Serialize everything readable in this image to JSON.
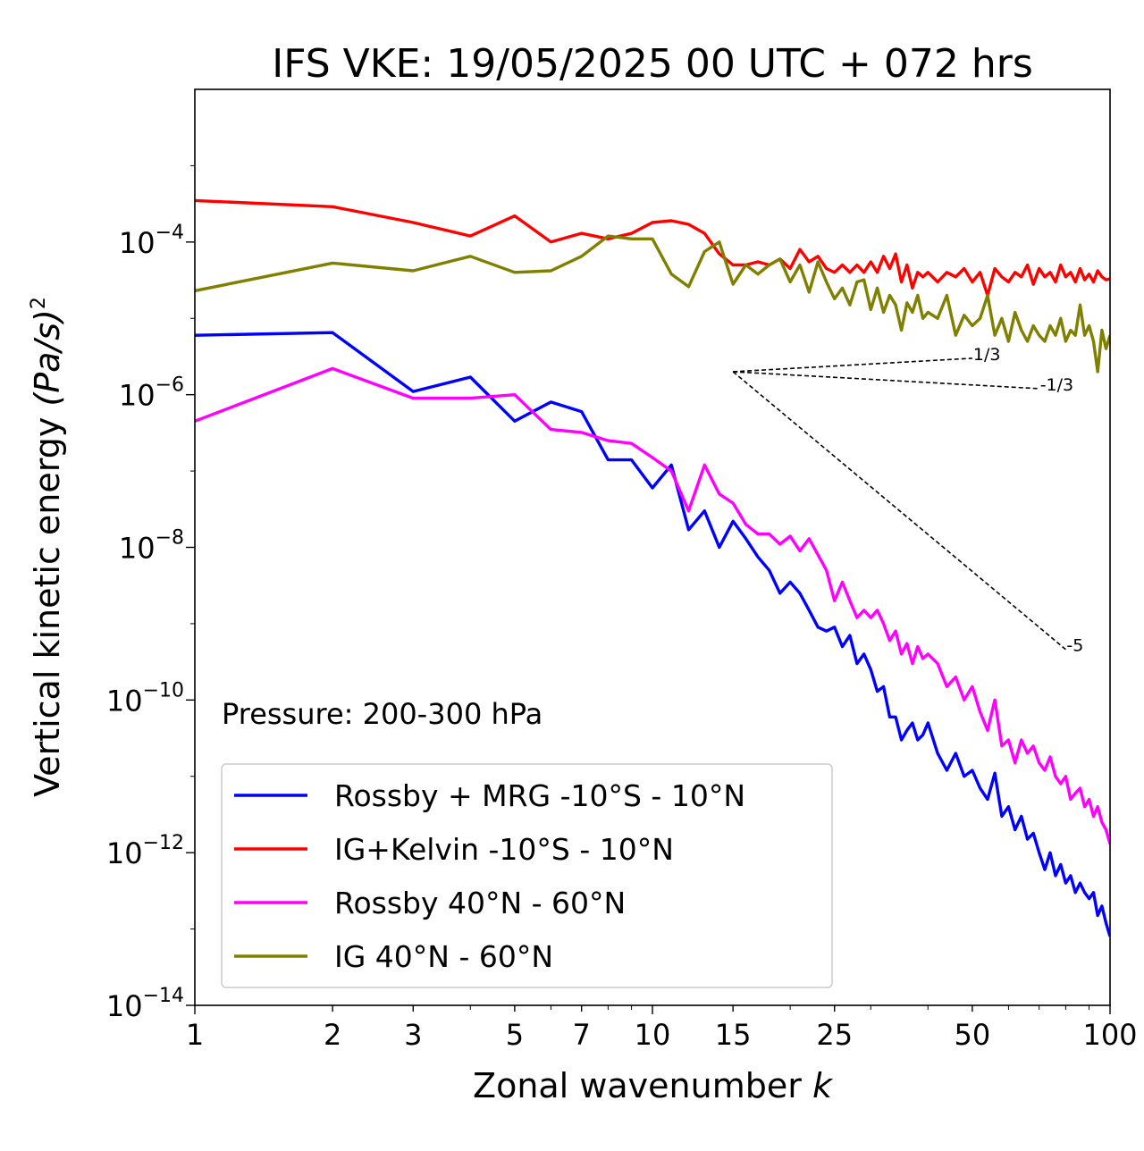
{
  "chart_data": {
    "type": "line",
    "title": "IFS VKE: 19/05/2025 00 UTC + 072 hrs",
    "xlabel": "Zonal wavenumber",
    "xlabel_var": "k",
    "ylabel": "Vertical kinetic energy",
    "ylabel_unit": "(Pa/s)",
    "ylabel_exp": "2",
    "annotation": "Pressure: 200-300 hPa",
    "x_scale": "log",
    "y_scale": "log",
    "xlim": [
      1,
      100
    ],
    "ylim": [
      1e-14,
      0.01
    ],
    "x_ticks": [
      1,
      2,
      3,
      5,
      7,
      10,
      15,
      25,
      50,
      100
    ],
    "x_tick_labels": [
      "1",
      "2",
      "3",
      "5",
      "7",
      "10",
      "15",
      "25",
      "50",
      "100"
    ],
    "y_ticks": [
      {
        "value": 0.0001,
        "base": "10",
        "exp": "−4"
      },
      {
        "value": 1e-06,
        "base": "10",
        "exp": "−6"
      },
      {
        "value": 1e-08,
        "base": "10",
        "exp": "−8"
      },
      {
        "value": 1e-10,
        "base": "10",
        "exp": "−10"
      },
      {
        "value": 1e-12,
        "base": "10",
        "exp": "−12"
      },
      {
        "value": 1e-14,
        "base": "10",
        "exp": "−14"
      }
    ],
    "legend_position": "lower-left",
    "series": [
      {
        "name": "Rossby + MRG -10°S - 10°N",
        "color": "#0000ff",
        "x": [
          1,
          2,
          3,
          4,
          5,
          6,
          7,
          8,
          9,
          10,
          11,
          12,
          13,
          14,
          15,
          16,
          17,
          18,
          19,
          20,
          21,
          22,
          23,
          24,
          25,
          26,
          27,
          28,
          29,
          30,
          31,
          32,
          33,
          34,
          35,
          36,
          37,
          38,
          39,
          40,
          42,
          44,
          46,
          48,
          50,
          52,
          54,
          56,
          58,
          60,
          62,
          64,
          66,
          68,
          70,
          72,
          74,
          76,
          78,
          80,
          82,
          84,
          86,
          88,
          90,
          92,
          94,
          96,
          98,
          100
        ],
        "y": [
          6e-06,
          6.5e-06,
          1.1e-06,
          1.7e-06,
          4.5e-07,
          8e-07,
          6e-07,
          1.4e-07,
          1.4e-07,
          6e-08,
          1.2e-07,
          1.7e-08,
          3e-08,
          1e-08,
          2.2e-08,
          1.3e-08,
          7.5e-09,
          5e-09,
          2.5e-09,
          3.5e-09,
          2.5e-09,
          1.5e-09,
          9e-10,
          8e-10,
          9e-10,
          5e-10,
          7e-10,
          3e-10,
          4e-10,
          2.5e-10,
          1.3e-10,
          1.5e-10,
          6e-11,
          6e-11,
          3e-11,
          4e-11,
          5e-11,
          3e-11,
          3.5e-11,
          5e-11,
          2e-11,
          1.2e-11,
          2e-11,
          1e-11,
          1.2e-11,
          7e-12,
          5e-12,
          1.1e-11,
          3e-12,
          4e-12,
          2e-12,
          3e-12,
          1.5e-12,
          1.8e-12,
          1e-12,
          6e-13,
          1e-12,
          5e-13,
          7e-13,
          4e-13,
          5e-13,
          3e-13,
          4e-13,
          3e-13,
          2.5e-13,
          3e-13,
          1.5e-13,
          2e-13,
          1.2e-13,
          8e-14
        ]
      },
      {
        "name": "IG+Kelvin -10°S - 10°N",
        "color": "#ff0000",
        "x": [
          1,
          2,
          3,
          4,
          5,
          6,
          7,
          8,
          9,
          10,
          11,
          12,
          13,
          14,
          15,
          16,
          17,
          18,
          19,
          20,
          21,
          22,
          23,
          24,
          25,
          26,
          27,
          28,
          29,
          30,
          31,
          32,
          33,
          34,
          35,
          36,
          37,
          38,
          39,
          40,
          42,
          44,
          46,
          48,
          50,
          52,
          54,
          56,
          58,
          60,
          62,
          64,
          66,
          68,
          70,
          72,
          74,
          76,
          78,
          80,
          82,
          84,
          86,
          88,
          90,
          92,
          94,
          96,
          98,
          100
        ],
        "y": [
          0.00035,
          0.00029,
          0.00018,
          0.00012,
          0.00022,
          0.0001,
          0.00013,
          0.00011,
          0.00013,
          0.00018,
          0.00019,
          0.00017,
          0.00013,
          7e-05,
          5e-05,
          5e-05,
          5.5e-05,
          5e-05,
          6e-05,
          4.5e-05,
          8e-05,
          5.5e-05,
          6.5e-05,
          4.5e-05,
          4e-05,
          5e-05,
          4e-05,
          5e-05,
          4e-05,
          5.5e-05,
          4e-05,
          6.5e-05,
          4.5e-05,
          7e-05,
          3e-05,
          5e-05,
          2.5e-05,
          4e-05,
          3.5e-05,
          4e-05,
          3e-05,
          4e-05,
          3.5e-05,
          4.5e-05,
          3e-05,
          4e-05,
          2e-05,
          4.5e-05,
          3.5e-05,
          3e-05,
          4e-05,
          3.5e-05,
          5e-05,
          2.8e-05,
          4.5e-05,
          3.5e-05,
          4e-05,
          3e-05,
          5e-05,
          3.5e-05,
          4e-05,
          3e-05,
          4.5e-05,
          3.2e-05,
          3.8e-05,
          3e-05,
          4.2e-05,
          3.5e-05,
          3.2e-05,
          3.3e-05
        ]
      },
      {
        "name": "Rossby 40°N - 60°N",
        "color": "#ff00ff",
        "x": [
          1,
          2,
          3,
          4,
          5,
          6,
          7,
          8,
          9,
          10,
          11,
          12,
          13,
          14,
          15,
          16,
          17,
          18,
          19,
          20,
          21,
          22,
          23,
          24,
          25,
          26,
          27,
          28,
          29,
          30,
          31,
          32,
          33,
          34,
          35,
          36,
          37,
          38,
          39,
          40,
          42,
          44,
          46,
          48,
          50,
          52,
          54,
          56,
          58,
          60,
          62,
          64,
          66,
          68,
          70,
          72,
          74,
          76,
          78,
          80,
          82,
          84,
          86,
          88,
          90,
          92,
          94,
          96,
          98,
          100
        ],
        "y": [
          4.5e-07,
          2.2e-06,
          9e-07,
          9e-07,
          1e-06,
          3.5e-07,
          3.2e-07,
          2.5e-07,
          2.3e-07,
          1.5e-07,
          1e-07,
          3e-08,
          1.2e-07,
          5e-08,
          3.8e-08,
          2e-08,
          1.5e-08,
          1.5e-08,
          1.1e-08,
          1.4e-08,
          9e-09,
          1.3e-08,
          8e-09,
          5e-09,
          2e-09,
          3.5e-09,
          2e-09,
          1.2e-09,
          1.5e-09,
          1.2e-09,
          1.5e-09,
          1e-09,
          6e-10,
          8e-10,
          4e-10,
          5.5e-10,
          3e-10,
          5e-10,
          3.5e-10,
          4e-10,
          3e-10,
          1.5e-10,
          2e-10,
          1e-10,
          1.5e-10,
          7e-11,
          4e-11,
          1e-10,
          2.5e-11,
          3e-11,
          1.5e-11,
          3e-11,
          2e-11,
          2.5e-11,
          1.5e-11,
          1.2e-11,
          1.8e-11,
          1e-11,
          8e-12,
          1e-11,
          5e-12,
          6e-12,
          7e-12,
          4e-12,
          5e-12,
          3e-12,
          4e-12,
          2.5e-12,
          2e-12,
          1.3e-12
        ]
      },
      {
        "name": "IG 40°N - 60°N",
        "color": "#808000",
        "x": [
          1,
          2,
          3,
          4,
          5,
          6,
          7,
          8,
          9,
          10,
          11,
          12,
          13,
          14,
          15,
          16,
          17,
          18,
          19,
          20,
          21,
          22,
          23,
          24,
          25,
          26,
          27,
          28,
          29,
          30,
          31,
          32,
          33,
          34,
          35,
          36,
          37,
          38,
          39,
          40,
          42,
          44,
          46,
          48,
          50,
          52,
          54,
          56,
          58,
          60,
          62,
          64,
          66,
          68,
          70,
          72,
          74,
          76,
          78,
          80,
          82,
          84,
          86,
          88,
          90,
          92,
          94,
          96,
          98,
          100
        ],
        "y": [
          2.3e-05,
          5.3e-05,
          4.2e-05,
          6.5e-05,
          4e-05,
          4.2e-05,
          6.5e-05,
          0.00012,
          0.00011,
          0.00011,
          3.8e-05,
          2.6e-05,
          7.5e-05,
          0.0001,
          2.8e-05,
          5e-05,
          3.8e-05,
          5e-05,
          6e-05,
          3e-05,
          5e-05,
          2.2e-05,
          5.5e-05,
          3e-05,
          1.8e-05,
          2.5e-05,
          1.5e-05,
          3e-05,
          3.2e-05,
          1.3e-05,
          2.5e-05,
          1.2e-05,
          2e-05,
          1.5e-05,
          7e-06,
          1.6e-05,
          1.2e-05,
          2e-05,
          1e-05,
          1.2e-05,
          1e-05,
          2e-05,
          6e-06,
          1.1e-05,
          8e-06,
          1e-05,
          2e-05,
          6e-06,
          1e-05,
          5e-06,
          1.2e-05,
          7e-06,
          5e-06,
          8e-06,
          6e-06,
          5e-06,
          8e-06,
          6e-06,
          1e-05,
          5e-06,
          7e-06,
          6e-06,
          1.5e-05,
          6e-06,
          8e-06,
          5e-06,
          2e-06,
          7e-06,
          4e-06,
          6e-06
        ]
      }
    ],
    "reference_lines": [
      {
        "label": "1/3",
        "x": [
          15,
          50
        ],
        "y": [
          2e-06,
          3e-06
        ]
      },
      {
        "label": "-1/3",
        "x": [
          15,
          70
        ],
        "y": [
          2e-06,
          1.2e-06
        ]
      },
      {
        "label": "-5",
        "x": [
          15,
          80
        ],
        "y": [
          2e-06,
          4.6e-10
        ]
      }
    ]
  }
}
